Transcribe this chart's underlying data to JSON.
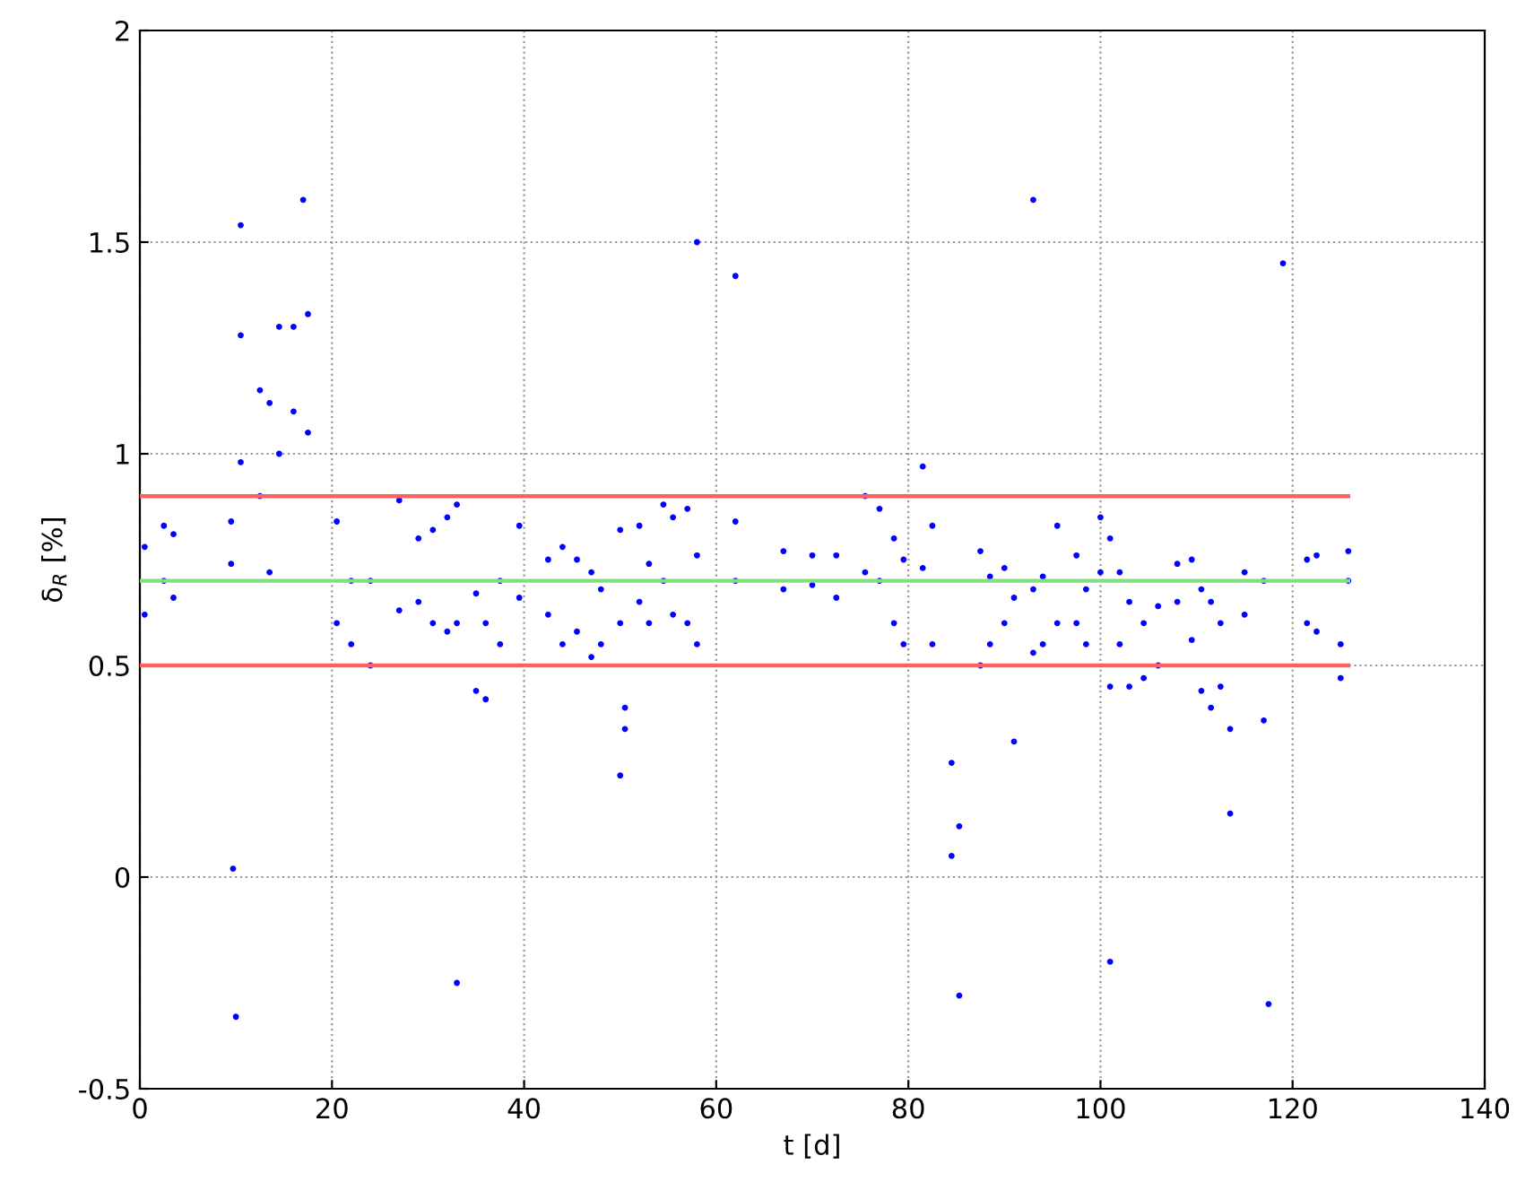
{
  "chart_data": {
    "type": "scatter",
    "xlabel": "t [d]",
    "ylabel": "δ$_{R}$ [%]",
    "xlim": [
      0,
      140
    ],
    "xticks": [
      0,
      20,
      40,
      60,
      80,
      100,
      120,
      140
    ],
    "ylim": [
      -0.5,
      2
    ],
    "yticks": [
      -0.5,
      0,
      0.5,
      1,
      1.5,
      2
    ],
    "grid": true,
    "series": [
      {
        "color": "#0000ff",
        "marker": "circle",
        "x": [
          0.5,
          0.5,
          2.5,
          2.5,
          3.5,
          3.5,
          9.5,
          9.5,
          10.5,
          10.5,
          12.5,
          12.5,
          13.5,
          13.5,
          14.5,
          14.5,
          16,
          16,
          17.5,
          17.5,
          20.5,
          20.5,
          22,
          22,
          24,
          24,
          27,
          27,
          29,
          29,
          30.5,
          30.5,
          32,
          32,
          33,
          33,
          35,
          35,
          36,
          36,
          37.5,
          37.5,
          39.5,
          39.5,
          42.5,
          42.5,
          44,
          44,
          45.5,
          45.5,
          47,
          47,
          48,
          48,
          50,
          50,
          50.5,
          50.5,
          52,
          52,
          53,
          53,
          54.5,
          54.5,
          55.5,
          55.5,
          57,
          57,
          58,
          58,
          62,
          62,
          67,
          67,
          70,
          70,
          72.5,
          72.5,
          75.5,
          75.5,
          77,
          77,
          78.5,
          78.5,
          79.5,
          79.5,
          81.5,
          81.5,
          82.5,
          82.5,
          84.5,
          84.5,
          85.3,
          85.3,
          87.5,
          87.5,
          88.5,
          88.5,
          90,
          90,
          91,
          91,
          93,
          93,
          94,
          94,
          95.5,
          95.5,
          97.5,
          97.5,
          98.5,
          98.5,
          100,
          100,
          101,
          101,
          102,
          102,
          103,
          103,
          104.5,
          104.5,
          106,
          106,
          108,
          108,
          109.5,
          109.5,
          110.5,
          110.5,
          111.5,
          111.5,
          112.5,
          112.5,
          113.5,
          113.5,
          115,
          115,
          117,
          117,
          121.5,
          121.5,
          122.5,
          122.5,
          125,
          125,
          125.8,
          125.8,
          10.5,
          17,
          93,
          62,
          58,
          117.5,
          33,
          50,
          10,
          9.7,
          101,
          119
        ],
        "values": [
          0.78,
          0.62,
          0.83,
          0.7,
          0.81,
          0.66,
          0.84,
          0.74,
          1.28,
          0.98,
          1.15,
          0.9,
          1.12,
          0.72,
          1.3,
          1.0,
          1.3,
          1.1,
          1.33,
          1.05,
          0.84,
          0.6,
          0.7,
          0.55,
          0.7,
          0.5,
          0.89,
          0.63,
          0.8,
          0.65,
          0.82,
          0.6,
          0.85,
          0.58,
          0.88,
          0.6,
          0.67,
          0.44,
          0.6,
          0.42,
          0.7,
          0.55,
          0.83,
          0.66,
          0.75,
          0.62,
          0.78,
          0.55,
          0.75,
          0.58,
          0.72,
          0.52,
          0.68,
          0.55,
          0.82,
          0.6,
          0.4,
          0.35,
          0.83,
          0.65,
          0.74,
          0.6,
          0.88,
          0.7,
          0.85,
          0.62,
          0.87,
          0.6,
          0.76,
          0.55,
          0.84,
          0.7,
          0.77,
          0.68,
          0.76,
          0.69,
          0.76,
          0.66,
          0.9,
          0.72,
          0.87,
          0.7,
          0.8,
          0.6,
          0.75,
          0.55,
          0.97,
          0.73,
          0.83,
          0.55,
          0.27,
          0.05,
          0.12,
          -0.28,
          0.77,
          0.5,
          0.71,
          0.55,
          0.73,
          0.6,
          0.66,
          0.32,
          0.68,
          0.53,
          0.71,
          0.55,
          0.83,
          0.6,
          0.76,
          0.6,
          0.68,
          0.55,
          0.85,
          0.72,
          0.8,
          0.45,
          0.72,
          0.55,
          0.65,
          0.45,
          0.6,
          0.47,
          0.64,
          0.5,
          0.74,
          0.65,
          0.75,
          0.56,
          0.68,
          0.44,
          0.65,
          0.4,
          0.6,
          0.45,
          0.35,
          0.15,
          0.72,
          0.62,
          0.7,
          0.37,
          0.75,
          0.6,
          0.76,
          0.58,
          0.55,
          0.47,
          0.77,
          0.7,
          1.54,
          1.6,
          1.6,
          1.42,
          1.5,
          -0.3,
          -0.25,
          0.24,
          -0.33,
          0.02,
          -0.2,
          1.45
        ]
      },
      {
        "type": "line",
        "color": "#ff6060",
        "x": [
          0,
          125.8
        ],
        "values": [
          0.9,
          0.9
        ]
      },
      {
        "type": "line",
        "color": "#80e080",
        "x": [
          0,
          125.8
        ],
        "values": [
          0.7,
          0.7
        ]
      },
      {
        "type": "line",
        "color": "#ff6060",
        "x": [
          0,
          125.8
        ],
        "values": [
          0.5,
          0.5
        ]
      }
    ]
  }
}
